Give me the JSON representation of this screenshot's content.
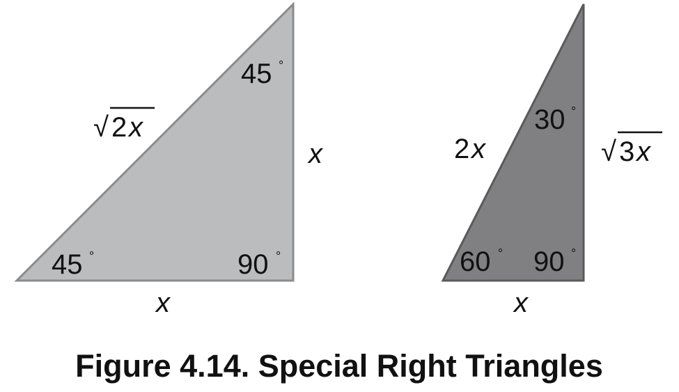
{
  "caption": "Figure 4.14. Special Right Triangles",
  "triangle_45": {
    "fill": "#bbbcbe",
    "stroke": "#8a8b8e",
    "angle_top": "45",
    "angle_bottom_left": "45",
    "angle_right": "90",
    "degree_symbol": "°",
    "hypotenuse_radical": "√",
    "hypotenuse_coef": "2",
    "hypotenuse_var": "x",
    "leg_vertical": "x",
    "leg_horizontal": "x"
  },
  "triangle_30": {
    "fill": "#808083",
    "stroke": "#5a5a5d",
    "angle_top": "30",
    "angle_bottom_left": "60",
    "angle_right": "90",
    "degree_symbol": "°",
    "hypotenuse_coef": "2",
    "hypotenuse_var": "x",
    "leg_vertical_radical": "√",
    "leg_vertical_coef": "3",
    "leg_vertical_var": "x",
    "leg_horizontal": "x"
  }
}
